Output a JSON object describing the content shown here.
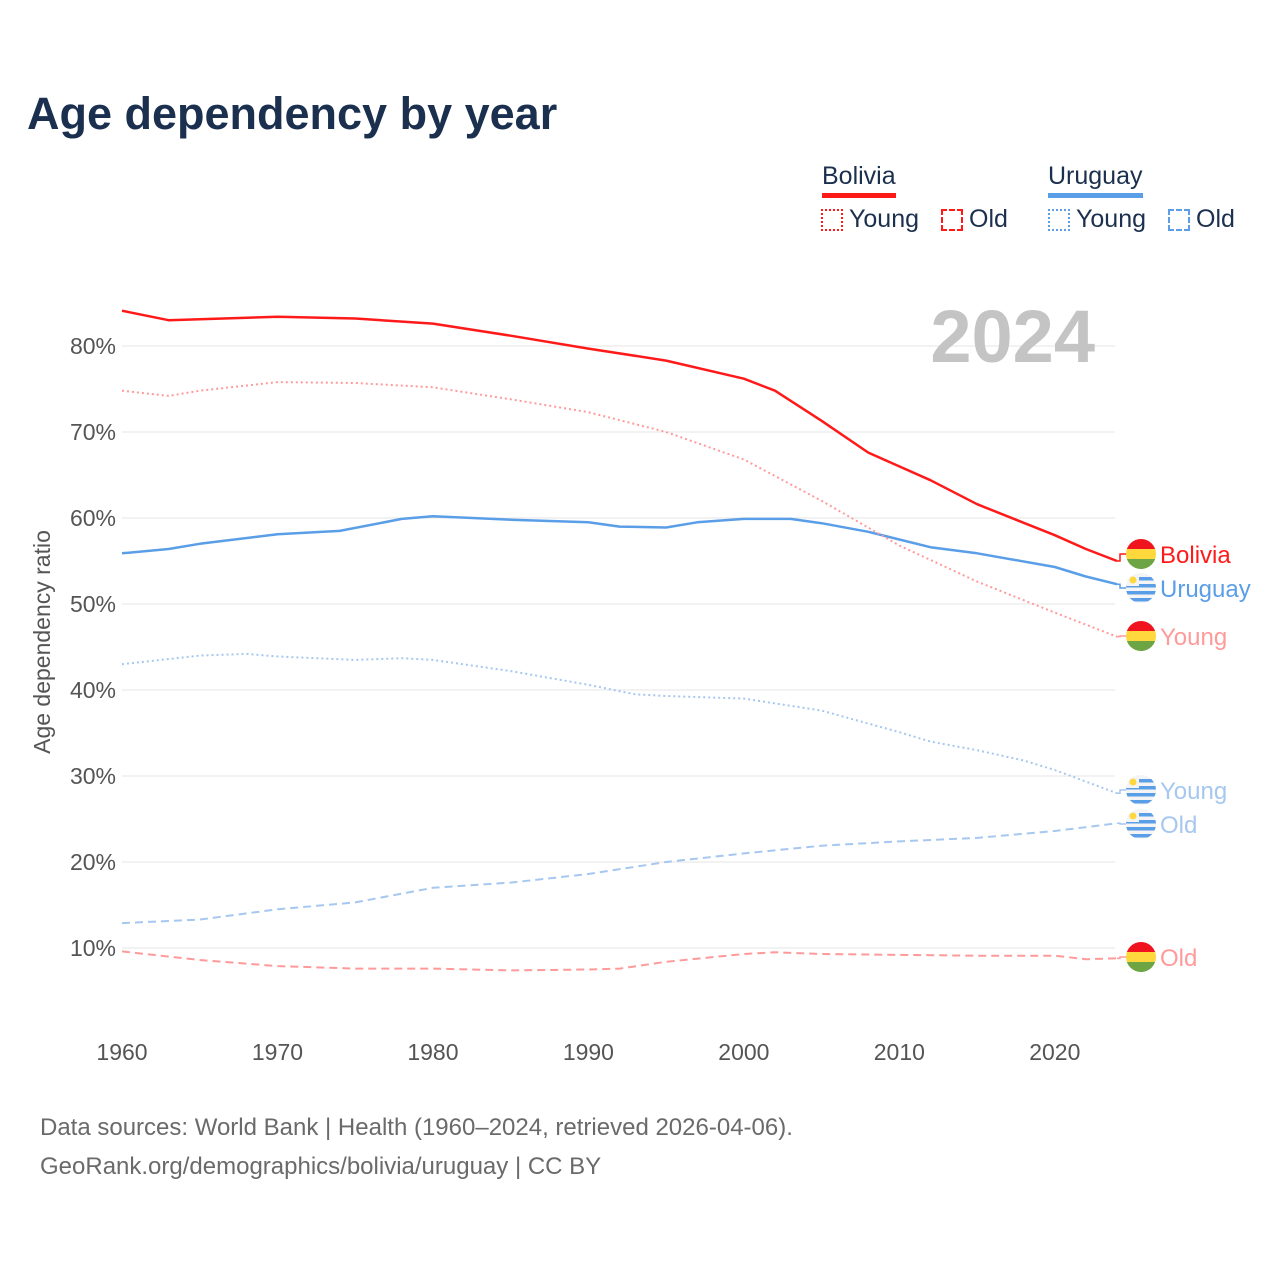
{
  "title": "Age dependency by year",
  "legend": {
    "countries": [
      {
        "name": "Bolivia",
        "color": "#ff1a1a",
        "light": "#ff9a9a"
      },
      {
        "name": "Uruguay",
        "color": "#5a9ee8",
        "light": "#a6c7f0"
      }
    ],
    "young_label": "Young",
    "old_label": "Old"
  },
  "footer": {
    "line1": "Data sources: World Bank | Health (1960–2024, retrieved 2026-04-06).",
    "line2": "GeoRank.org/demographics/bolivia/uruguay | CC BY"
  },
  "chart_data": {
    "type": "line",
    "title": "Age dependency by year",
    "year_label": "2024",
    "xlabel": "",
    "ylabel": "Age dependency ratio",
    "xlim": [
      1960,
      2024
    ],
    "ylim": [
      0,
      85
    ],
    "x_ticks": [
      "1960",
      "1970",
      "1980",
      "1990",
      "2000",
      "2010",
      "2020"
    ],
    "y_ticks": [
      "10%",
      "20%",
      "30%",
      "40%",
      "50%",
      "60%",
      "70%",
      "80%"
    ],
    "grid": true,
    "series": [
      {
        "name": "Bolivia",
        "label": "Bolivia",
        "country": "Bolivia",
        "kind": "total",
        "color": "#ff1a1a",
        "x": [
          1960,
          1963,
          1965,
          1970,
          1975,
          1980,
          1985,
          1990,
          1995,
          2000,
          2002,
          2005,
          2008,
          2010,
          2012,
          2015,
          2020,
          2022,
          2024
        ],
        "y": [
          84.1,
          83.0,
          83.1,
          83.4,
          83.2,
          82.6,
          81.2,
          79.7,
          78.3,
          76.2,
          74.8,
          71.3,
          67.6,
          66.0,
          64.4,
          61.6,
          58.0,
          56.4,
          55.0
        ]
      },
      {
        "name": "Uruguay",
        "label": "Uruguay",
        "country": "Uruguay",
        "kind": "total",
        "color": "#5a9ee8",
        "x": [
          1960,
          1963,
          1965,
          1970,
          1974,
          1978,
          1980,
          1985,
          1990,
          1992,
          1995,
          1997,
          2000,
          2003,
          2005,
          2008,
          2010,
          2012,
          2015,
          2020,
          2022,
          2024
        ],
        "y": [
          55.9,
          56.4,
          57.0,
          58.1,
          58.5,
          59.9,
          60.2,
          59.8,
          59.5,
          59.0,
          58.9,
          59.5,
          59.9,
          59.9,
          59.4,
          58.4,
          57.5,
          56.6,
          55.9,
          54.3,
          53.2,
          52.3
        ]
      },
      {
        "name": "Bolivia Young",
        "label": "Young",
        "country": "Bolivia",
        "kind": "young",
        "color": "#ff9a9a",
        "x": [
          1960,
          1963,
          1965,
          1970,
          1975,
          1980,
          1985,
          1990,
          1995,
          2000,
          2005,
          2010,
          2015,
          2020,
          2024
        ],
        "y": [
          74.8,
          74.2,
          74.8,
          75.8,
          75.7,
          75.2,
          73.8,
          72.3,
          70.0,
          66.8,
          62.0,
          56.8,
          52.6,
          49.0,
          46.2
        ]
      },
      {
        "name": "Uruguay Young",
        "label": "Young",
        "country": "Uruguay",
        "kind": "young",
        "color": "#a6c7f0",
        "x": [
          1960,
          1965,
          1968,
          1970,
          1975,
          1978,
          1980,
          1985,
          1990,
          1993,
          1995,
          2000,
          2005,
          2010,
          2012,
          2015,
          2018,
          2020,
          2024
        ],
        "y": [
          43.0,
          44.0,
          44.2,
          43.9,
          43.5,
          43.7,
          43.5,
          42.2,
          40.6,
          39.5,
          39.3,
          39.0,
          37.6,
          35.1,
          34.0,
          33.0,
          31.8,
          30.7,
          28.0
        ]
      },
      {
        "name": "Uruguay Old",
        "label": "Old",
        "country": "Uruguay",
        "kind": "old",
        "color": "#a6c7f0",
        "x": [
          1960,
          1965,
          1970,
          1975,
          1980,
          1985,
          1990,
          1995,
          2000,
          2005,
          2010,
          2015,
          2020,
          2024
        ],
        "y": [
          12.9,
          13.3,
          14.5,
          15.3,
          17.0,
          17.6,
          18.6,
          20.0,
          21.0,
          21.9,
          22.4,
          22.8,
          23.6,
          24.5
        ]
      },
      {
        "name": "Bolivia Old",
        "label": "Old",
        "country": "Bolivia",
        "kind": "old",
        "color": "#ff9a9a",
        "x": [
          1960,
          1965,
          1970,
          1975,
          1980,
          1985,
          1990,
          1992,
          1995,
          2000,
          2002,
          2005,
          2010,
          2015,
          2020,
          2022,
          2024
        ],
        "y": [
          9.6,
          8.6,
          7.9,
          7.6,
          7.6,
          7.4,
          7.5,
          7.6,
          8.4,
          9.3,
          9.5,
          9.3,
          9.2,
          9.1,
          9.1,
          8.7,
          8.8
        ]
      }
    ]
  }
}
